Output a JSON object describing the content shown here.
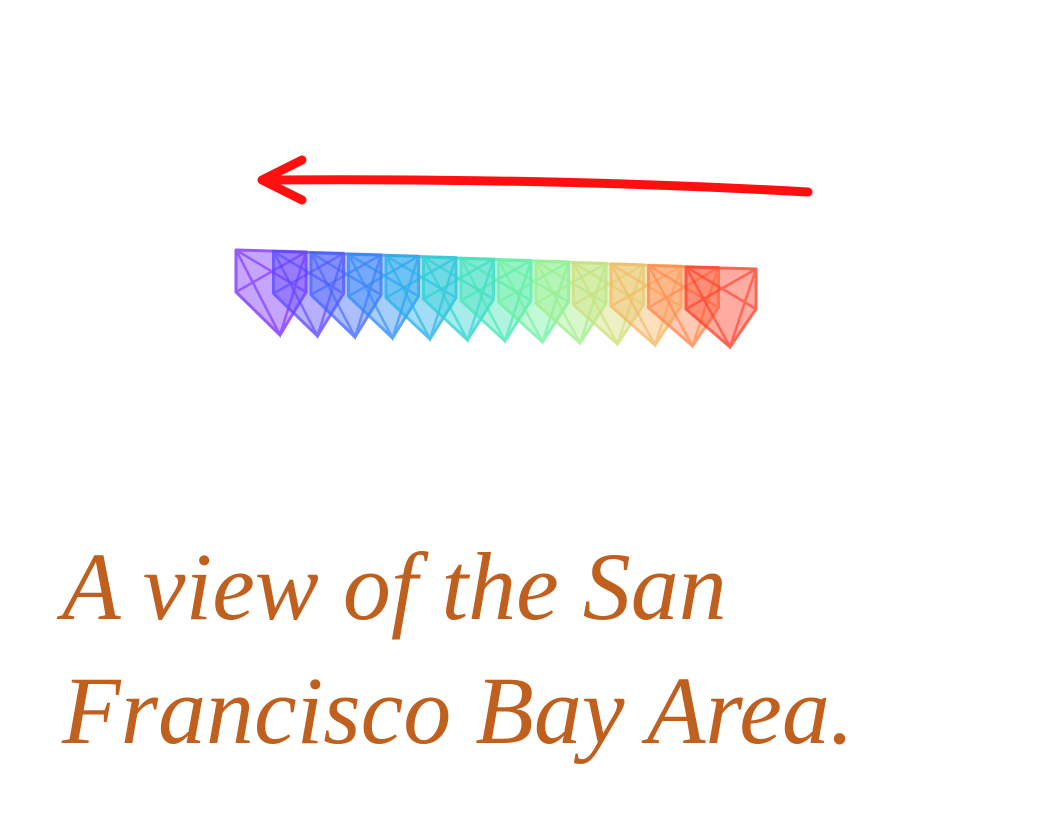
{
  "caption": {
    "line1": "A view of the San",
    "line2": "Francisco Bay Area.",
    "color": "#c0601e"
  },
  "arrow": {
    "color": "#ff1010",
    "direction": "left"
  },
  "camera_sequence": {
    "count": 13,
    "colors": [
      "#7a2cff",
      "#5a45ff",
      "#3f66ff",
      "#2c8cf6",
      "#22b2e8",
      "#2bd2d0",
      "#45e6b6",
      "#6ff0a0",
      "#a0ee8a",
      "#d0de78",
      "#f6b660",
      "#ff8448",
      "#ff3a24"
    ]
  }
}
